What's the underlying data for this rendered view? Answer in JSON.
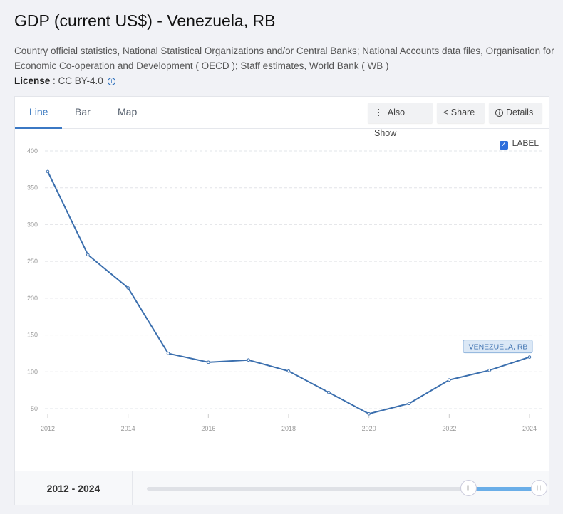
{
  "title": "GDP (current US$) - Venezuela, RB",
  "source": "Country official statistics, National Statistical Organizations and/or Central Banks; National Accounts data files, Organisation for Economic Co-operation and Development ( OECD ); Staff estimates, World Bank ( WB )",
  "license": {
    "label": "License",
    "value": " : CC BY-4.0"
  },
  "tabs": [
    {
      "label": "Line"
    },
    {
      "label": "Bar"
    },
    {
      "label": "Map"
    }
  ],
  "buttons": {
    "also_show": "Also Show",
    "share": "Share",
    "details": "Details"
  },
  "label_toggle": {
    "label": "LABEL",
    "checked": true
  },
  "range": {
    "text": "2012 - 2024",
    "start_fraction": 0.82,
    "end_fraction": 1.0
  },
  "chart_data": {
    "type": "line",
    "x": [
      2012,
      2013,
      2014,
      2015,
      2016,
      2017,
      2018,
      2019,
      2020,
      2021,
      2022,
      2023,
      2024
    ],
    "series": [
      {
        "name": "VENEZUELA, RB",
        "values": [
          372,
          259,
          214,
          125,
          113,
          116,
          101,
          72,
          43,
          57,
          89,
          102,
          120
        ],
        "color": "#3b6fae"
      }
    ],
    "xticks": [
      "2012",
      "2014",
      "2016",
      "2018",
      "2020",
      "2022",
      "2024"
    ],
    "yticks": [
      "50",
      "100",
      "150",
      "200",
      "250",
      "300",
      "350",
      "400"
    ],
    "ylim": [
      50,
      400
    ],
    "xlim": [
      2012,
      2024
    ],
    "grid": true
  }
}
